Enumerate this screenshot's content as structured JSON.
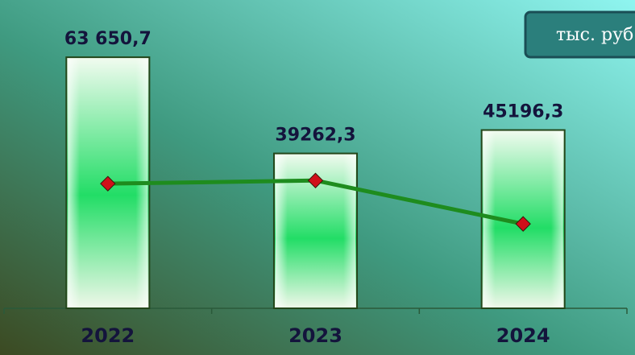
{
  "chart_data": {
    "type": "bar",
    "unit": "тыс. руб.",
    "categories": [
      "2022",
      "2023",
      "2024"
    ],
    "values": [
      63650.7,
      39262.3,
      45196.3
    ],
    "value_labels": [
      "63 650,7",
      "39262,3",
      "45196,3"
    ],
    "color": "#22dd66",
    "ylim": [
      0,
      70000
    ],
    "line": {
      "color": "#1e8c1e",
      "marker_color": "#d0101a",
      "values": [
        31600,
        32400,
        21400
      ]
    }
  }
}
